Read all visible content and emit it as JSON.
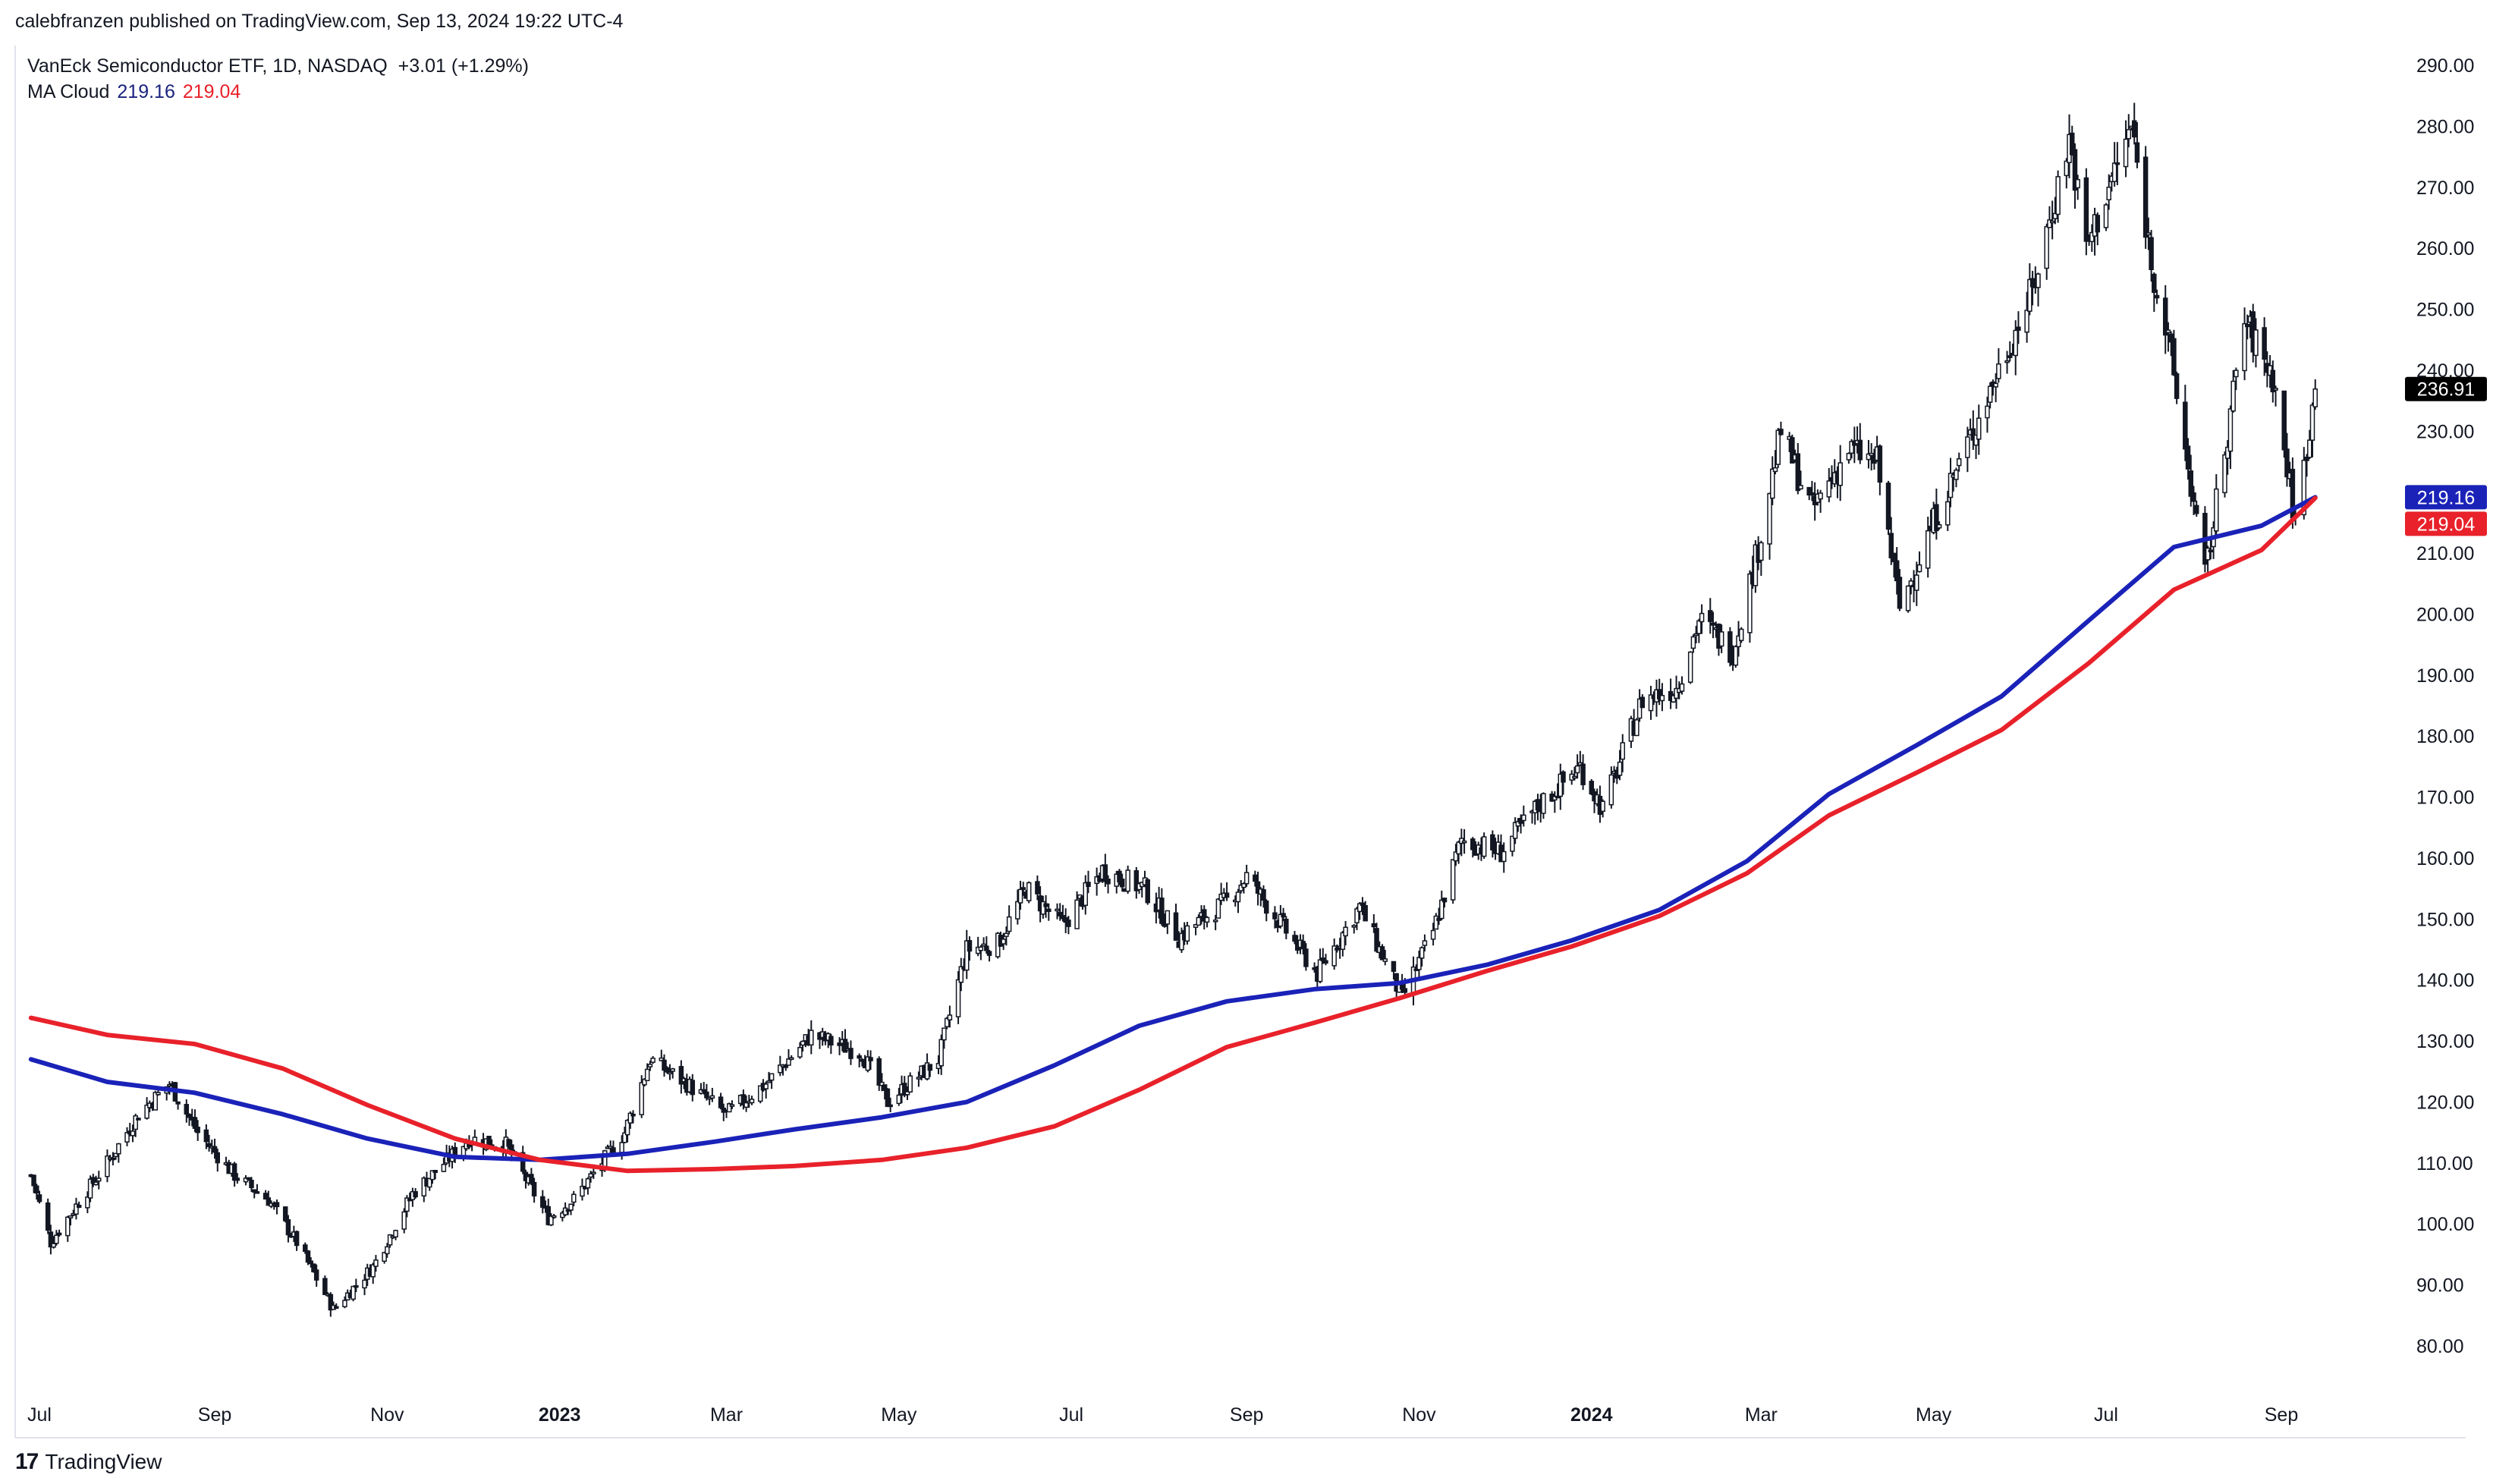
{
  "header": {
    "published": "calebfranzen published on TradingView.com, Sep 13, 2024 19:22 UTC-4"
  },
  "legend": {
    "title": "VanEck Semiconductor ETF, 1D, NASDAQ",
    "change": "+3.01 (+1.29%)",
    "ma_label": "MA Cloud",
    "ma_fast": "219.16",
    "ma_slow": "219.04"
  },
  "footer": {
    "brand": "TradingView"
  },
  "colors": {
    "ma_fast": "#1a22b8",
    "ma_slow": "#e8212a",
    "candle": "#131722",
    "last_bg": "#000000"
  },
  "chart_data": {
    "type": "line",
    "title": "VanEck Semiconductor ETF, 1D, NASDAQ",
    "ylim": [
      70,
      295
    ],
    "y_ticks": [
      "80.00",
      "90.00",
      "100.00",
      "110.00",
      "120.00",
      "130.00",
      "140.00",
      "150.00",
      "160.00",
      "170.00",
      "180.00",
      "190.00",
      "200.00",
      "210.00",
      "220.00",
      "230.00",
      "240.00",
      "250.00",
      "260.00",
      "270.00",
      "280.00",
      "290.00"
    ],
    "x_ticks": [
      {
        "label": "Jul",
        "date": "2022-07-01"
      },
      {
        "label": "Sep",
        "date": "2022-09-01"
      },
      {
        "label": "Nov",
        "date": "2022-11-01"
      },
      {
        "label": "2023",
        "date": "2023-01-01",
        "bold": true
      },
      {
        "label": "Mar",
        "date": "2023-03-01"
      },
      {
        "label": "May",
        "date": "2023-05-01"
      },
      {
        "label": "Jul",
        "date": "2023-07-01"
      },
      {
        "label": "Sep",
        "date": "2023-09-01"
      },
      {
        "label": "Nov",
        "date": "2023-11-01"
      },
      {
        "label": "2024",
        "date": "2024-01-01",
        "bold": true
      },
      {
        "label": "Mar",
        "date": "2024-03-01"
      },
      {
        "label": "May",
        "date": "2024-05-01"
      },
      {
        "label": "Jul",
        "date": "2024-07-01"
      },
      {
        "label": "Sep",
        "date": "2024-09-01"
      }
    ],
    "price": [
      [
        "2022-06-28",
        108
      ],
      [
        "2022-07-05",
        97
      ],
      [
        "2022-07-14",
        103
      ],
      [
        "2022-07-25",
        110
      ],
      [
        "2022-08-05",
        118
      ],
      [
        "2022-08-16",
        123
      ],
      [
        "2022-08-26",
        115
      ],
      [
        "2022-09-08",
        108
      ],
      [
        "2022-09-20",
        104
      ],
      [
        "2022-09-30",
        97
      ],
      [
        "2022-10-13",
        86
      ],
      [
        "2022-10-27",
        93
      ],
      [
        "2022-11-10",
        105
      ],
      [
        "2022-11-30",
        114
      ],
      [
        "2022-12-13",
        113
      ],
      [
        "2022-12-28",
        101
      ],
      [
        "2023-01-06",
        104
      ],
      [
        "2023-01-24",
        115
      ],
      [
        "2023-02-02",
        127
      ],
      [
        "2023-02-15",
        123
      ],
      [
        "2023-03-01",
        118
      ],
      [
        "2023-03-15",
        123
      ],
      [
        "2023-03-31",
        131
      ],
      [
        "2023-04-18",
        128
      ],
      [
        "2023-04-27",
        120
      ],
      [
        "2023-05-15",
        127
      ],
      [
        "2023-05-25",
        145
      ],
      [
        "2023-06-05",
        146
      ],
      [
        "2023-06-15",
        155
      ],
      [
        "2023-06-28",
        149
      ],
      [
        "2023-07-12",
        158
      ],
      [
        "2023-07-27",
        155
      ],
      [
        "2023-08-08",
        147
      ],
      [
        "2023-08-25",
        153
      ],
      [
        "2023-09-01",
        157
      ],
      [
        "2023-09-15",
        148
      ],
      [
        "2023-09-26",
        141
      ],
      [
        "2023-10-11",
        152
      ],
      [
        "2023-10-26",
        137
      ],
      [
        "2023-11-06",
        148
      ],
      [
        "2023-11-16",
        163
      ],
      [
        "2023-11-30",
        161
      ],
      [
        "2023-12-14",
        169
      ],
      [
        "2023-12-28",
        175
      ],
      [
        "2024-01-05",
        168
      ],
      [
        "2024-01-19",
        186
      ],
      [
        "2024-01-31",
        188
      ],
      [
        "2024-02-08",
        199
      ],
      [
        "2024-02-20",
        194
      ],
      [
        "2024-02-29",
        211
      ],
      [
        "2024-03-08",
        230
      ],
      [
        "2024-03-19",
        217
      ],
      [
        "2024-04-01",
        227
      ],
      [
        "2024-04-11",
        225
      ],
      [
        "2024-04-19",
        201
      ],
      [
        "2024-04-30",
        214
      ],
      [
        "2024-05-15",
        230
      ],
      [
        "2024-05-23",
        239
      ],
      [
        "2024-06-05",
        253
      ],
      [
        "2024-06-18",
        278
      ],
      [
        "2024-06-24",
        260
      ],
      [
        "2024-07-10",
        280
      ],
      [
        "2024-07-17",
        258
      ],
      [
        "2024-07-24",
        242
      ],
      [
        "2024-08-05",
        206
      ],
      [
        "2024-08-19",
        248
      ],
      [
        "2024-08-29",
        239
      ],
      [
        "2024-09-06",
        215
      ],
      [
        "2024-09-13",
        236.91
      ]
    ],
    "series": [
      {
        "name": "219.16",
        "color": "#1a22b8",
        "points": [
          [
            "2022-06-28",
            127
          ],
          [
            "2022-07-25",
            123.3
          ],
          [
            "2022-08-25",
            121.5
          ],
          [
            "2022-09-25",
            118
          ],
          [
            "2022-10-25",
            114
          ],
          [
            "2022-11-25",
            111
          ],
          [
            "2022-12-25",
            110.5
          ],
          [
            "2023-01-25",
            111.5
          ],
          [
            "2023-02-25",
            113.5
          ],
          [
            "2023-03-25",
            115.5
          ],
          [
            "2023-04-25",
            117.5
          ],
          [
            "2023-05-25",
            120
          ],
          [
            "2023-06-25",
            126
          ],
          [
            "2023-07-25",
            132.5
          ],
          [
            "2023-08-25",
            136.5
          ],
          [
            "2023-09-25",
            138.5
          ],
          [
            "2023-10-25",
            139.5
          ],
          [
            "2023-11-25",
            142.5
          ],
          [
            "2023-12-25",
            146.5
          ],
          [
            "2024-01-25",
            151.5
          ],
          [
            "2024-02-25",
            159.5
          ],
          [
            "2024-03-25",
            170.5
          ],
          [
            "2024-04-25",
            178.5
          ],
          [
            "2024-05-25",
            186.5
          ],
          [
            "2024-06-25",
            199
          ],
          [
            "2024-07-25",
            211
          ],
          [
            "2024-08-25",
            214.5
          ],
          [
            "2024-09-13",
            219.16
          ]
        ]
      },
      {
        "name": "219.04",
        "color": "#e8212a",
        "points": [
          [
            "2022-06-28",
            133.8
          ],
          [
            "2022-07-25",
            131
          ],
          [
            "2022-08-25",
            129.5
          ],
          [
            "2022-09-25",
            125.5
          ],
          [
            "2022-10-25",
            119.5
          ],
          [
            "2022-11-25",
            114
          ],
          [
            "2022-12-25",
            110.5
          ],
          [
            "2023-01-25",
            108.7
          ],
          [
            "2023-02-25",
            109
          ],
          [
            "2023-03-25",
            109.5
          ],
          [
            "2023-04-25",
            110.5
          ],
          [
            "2023-05-25",
            112.5
          ],
          [
            "2023-06-25",
            116
          ],
          [
            "2023-07-25",
            122
          ],
          [
            "2023-08-25",
            129
          ],
          [
            "2023-09-25",
            133
          ],
          [
            "2023-10-25",
            137
          ],
          [
            "2023-11-25",
            141.5
          ],
          [
            "2023-12-25",
            145.5
          ],
          [
            "2024-01-25",
            150.5
          ],
          [
            "2024-02-25",
            157.5
          ],
          [
            "2024-03-25",
            167
          ],
          [
            "2024-04-25",
            174
          ],
          [
            "2024-05-25",
            181
          ],
          [
            "2024-06-25",
            192
          ],
          [
            "2024-07-25",
            204
          ],
          [
            "2024-08-25",
            210.5
          ],
          [
            "2024-09-13",
            219.04
          ]
        ]
      }
    ],
    "last_price": "236.91"
  }
}
